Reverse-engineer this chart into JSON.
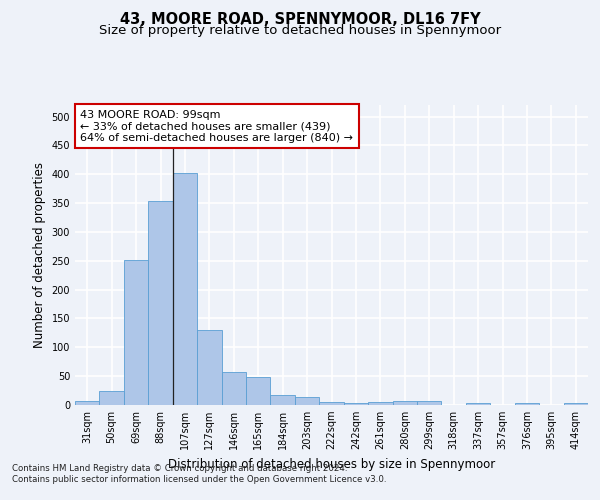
{
  "title1": "43, MOORE ROAD, SPENNYMOOR, DL16 7FY",
  "title2": "Size of property relative to detached houses in Spennymoor",
  "xlabel": "Distribution of detached houses by size in Spennymoor",
  "ylabel": "Number of detached properties",
  "categories": [
    "31sqm",
    "50sqm",
    "69sqm",
    "88sqm",
    "107sqm",
    "127sqm",
    "146sqm",
    "165sqm",
    "184sqm",
    "203sqm",
    "222sqm",
    "242sqm",
    "261sqm",
    "280sqm",
    "299sqm",
    "318sqm",
    "337sqm",
    "357sqm",
    "376sqm",
    "395sqm",
    "414sqm"
  ],
  "values": [
    7,
    24,
    252,
    354,
    402,
    130,
    58,
    49,
    18,
    14,
    6,
    3,
    5,
    7,
    7,
    0,
    3,
    0,
    3,
    0,
    3
  ],
  "bar_color": "#aec6e8",
  "bar_edgecolor": "#5a9fd4",
  "property_line_x": 3.5,
  "annotation_line1": "43 MOORE ROAD: 99sqm",
  "annotation_line2": "← 33% of detached houses are smaller (439)",
  "annotation_line3": "64% of semi-detached houses are larger (840) →",
  "annotation_box_color": "#ffffff",
  "annotation_border_color": "#cc0000",
  "ylim": [
    0,
    520
  ],
  "yticks": [
    0,
    50,
    100,
    150,
    200,
    250,
    300,
    350,
    400,
    450,
    500
  ],
  "footer1": "Contains HM Land Registry data © Crown copyright and database right 2024.",
  "footer2": "Contains public sector information licensed under the Open Government Licence v3.0.",
  "bg_color": "#eef2f9",
  "plot_bg_color": "#eef2f9",
  "grid_color": "#ffffff",
  "title_fontsize": 10.5,
  "subtitle_fontsize": 9.5,
  "tick_fontsize": 7,
  "label_fontsize": 8.5,
  "annotation_fontsize": 8
}
